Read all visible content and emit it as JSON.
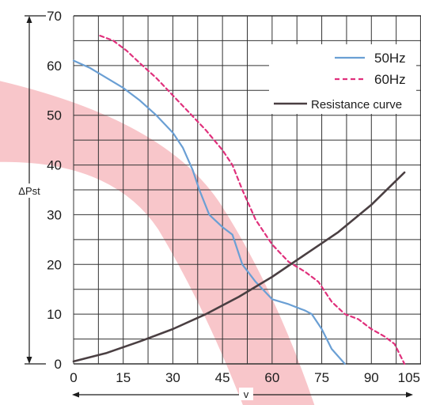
{
  "chart_data": {
    "type": "line",
    "title": "",
    "xlabel": "v",
    "ylabel": "ΔPst",
    "xlim": [
      0,
      105
    ],
    "ylim": [
      0,
      70
    ],
    "x_ticks": [
      "0",
      "15",
      "30",
      "45",
      "60",
      "75",
      "90",
      "105"
    ],
    "y_ticks": [
      "0",
      "10",
      "20",
      "30",
      "40",
      "50",
      "60",
      "70"
    ],
    "grid": true,
    "legend_position": "top-right",
    "series": [
      {
        "name": "50Hz",
        "style": "solid",
        "color": "#6a9fd4",
        "x": [
          0,
          5,
          10,
          15,
          20,
          25,
          30,
          33,
          36,
          38,
          41,
          45,
          48,
          51,
          55,
          60,
          65,
          70,
          72,
          75,
          78,
          82
        ],
        "y": [
          61,
          59.5,
          57.5,
          55.5,
          53,
          50,
          46.5,
          43.5,
          39,
          35,
          30,
          27.5,
          26,
          20,
          16.5,
          13,
          12,
          10.7,
          10,
          7,
          3,
          0
        ]
      },
      {
        "name": "60Hz",
        "style": "dashed",
        "color": "#e0307c",
        "x": [
          8,
          12,
          16,
          20,
          25,
          30,
          35,
          40,
          45,
          48,
          51,
          55,
          60,
          65,
          70,
          74,
          78,
          82,
          86,
          90,
          94,
          97,
          100
        ],
        "y": [
          66,
          65,
          63,
          60.5,
          57.5,
          54,
          50.5,
          47,
          43,
          40,
          35,
          29,
          24,
          20.5,
          18.5,
          16.5,
          12.5,
          10,
          9,
          7,
          5.5,
          4,
          0
        ]
      },
      {
        "name": "Resistance curve",
        "style": "solid",
        "color": "#4a3f42",
        "x": [
          0,
          10,
          20,
          30,
          40,
          50,
          60,
          70,
          80,
          90,
          100
        ],
        "y": [
          0.5,
          2.2,
          4.5,
          7,
          10,
          13.5,
          17.5,
          22,
          26.5,
          32,
          38.5
        ]
      }
    ]
  },
  "colors": {
    "grid": "#333333",
    "band": "#f4a7ad",
    "axis": "#1c1c1c"
  }
}
